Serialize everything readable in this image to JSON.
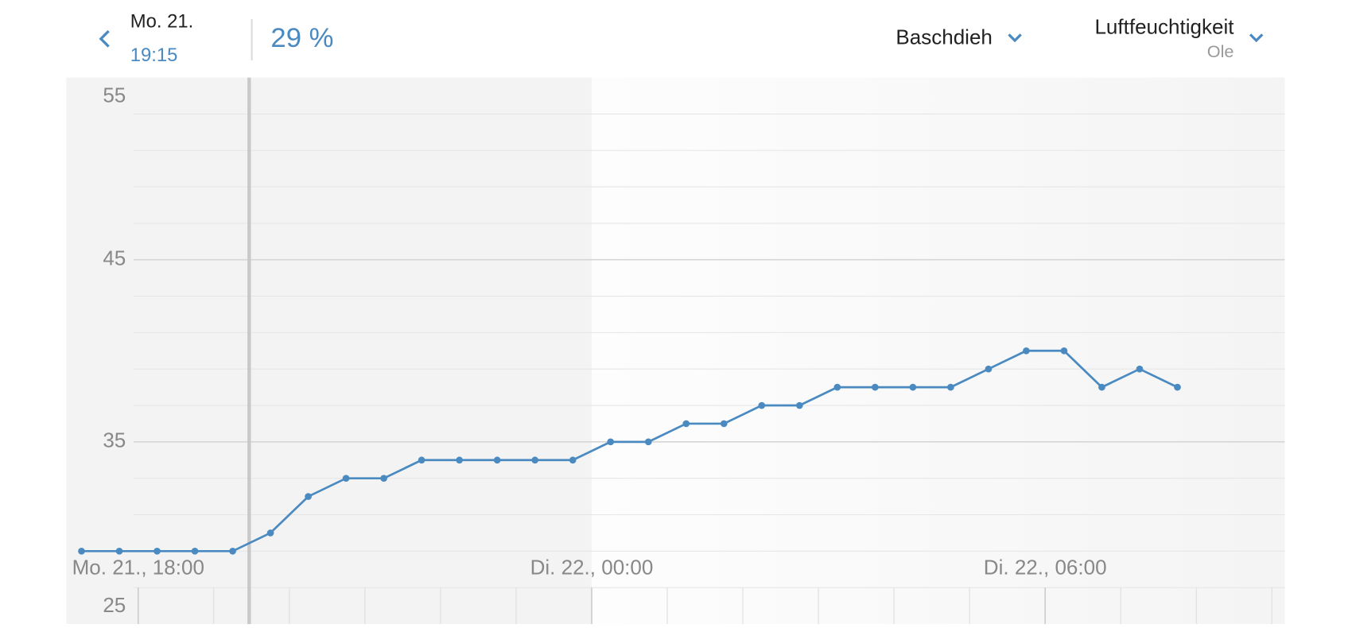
{
  "header": {
    "date": "Mo. 21.",
    "time": "19:15",
    "value": "29 %",
    "device": "Baschdieh",
    "metric": "Luftfeuchtigkeit",
    "room": "Ole"
  },
  "chart_data": {
    "type": "line",
    "color": "#4a8ac0",
    "x": [
      17.25,
      17.75,
      18.25,
      18.75,
      19.25,
      19.75,
      20.25,
      20.75,
      21.25,
      21.75,
      22.25,
      22.75,
      23.25,
      23.75,
      24.25,
      24.75,
      25.25,
      25.75,
      26.25,
      26.75,
      27.25,
      27.75,
      28.25,
      28.75,
      29.25,
      29.75,
      30.25,
      30.75,
      31.25,
      31.75
    ],
    "values": [
      29,
      29,
      29,
      29,
      29,
      30,
      32,
      33,
      33,
      34,
      34,
      34,
      34,
      34,
      35,
      35,
      36,
      36,
      37,
      37,
      38,
      38,
      38,
      38,
      39,
      40,
      40,
      38,
      39,
      38
    ],
    "xlim": [
      17.05,
      33.17
    ],
    "xticks": [
      {
        "value": 18,
        "label": "Mo. 21., 18:00"
      },
      {
        "value": 24,
        "label": "Di. 22., 00:00"
      },
      {
        "value": 30,
        "label": "Di. 22., 06:00"
      }
    ],
    "ylim": [
      25,
      55
    ],
    "yticks": [
      25,
      35,
      45,
      55
    ],
    "grid": true
  }
}
